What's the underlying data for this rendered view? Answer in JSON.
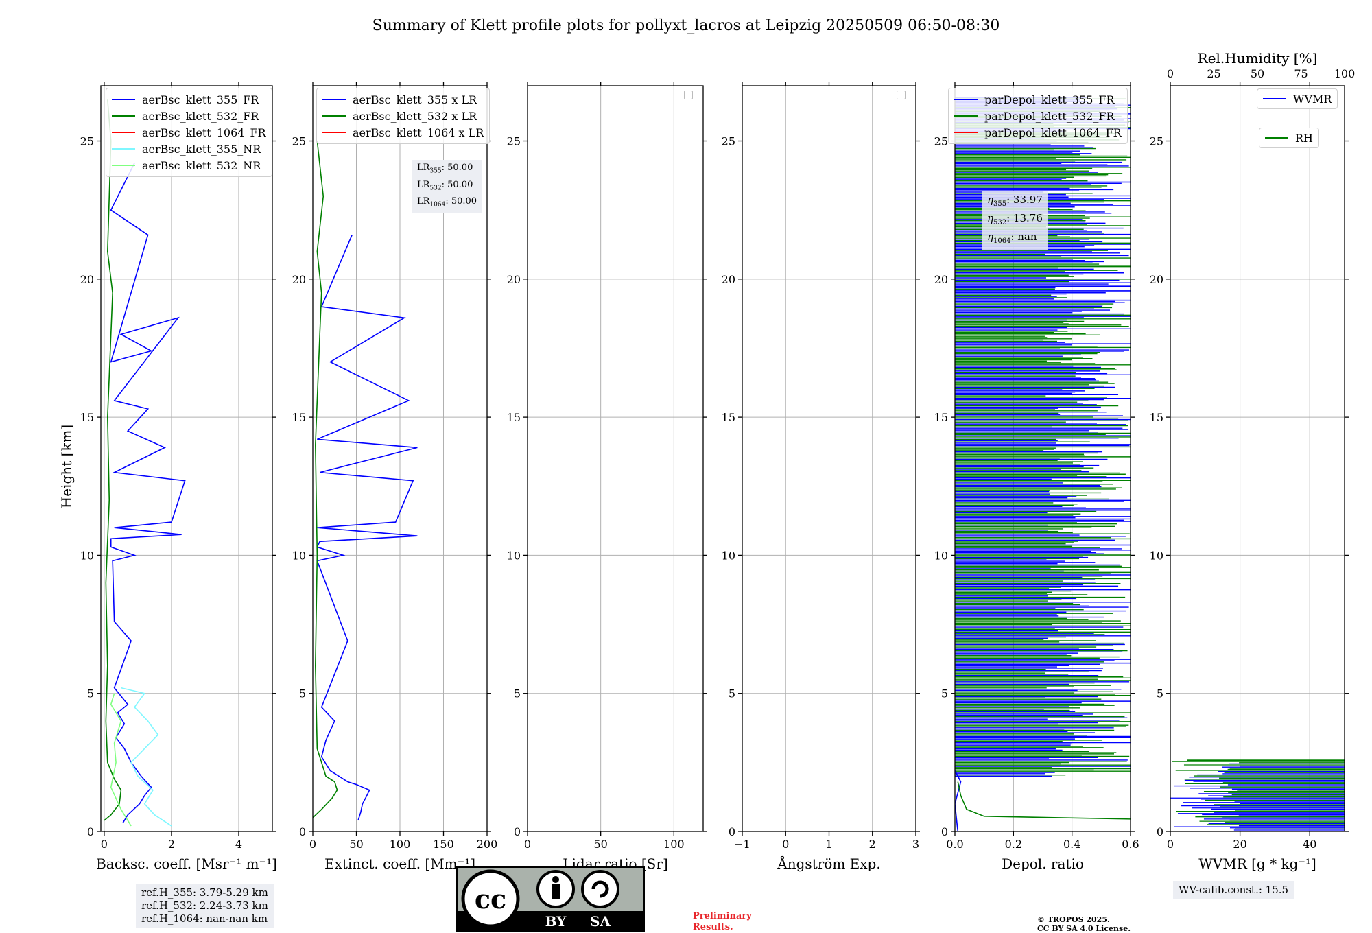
{
  "title": "Summary of Klett profile plots for pollyxt_lacros at Leipzig 20250509 06:50-08:30",
  "ylabel": "Height [km]",
  "yticks": [
    "0",
    "5",
    "10",
    "15",
    "20",
    "25"
  ],
  "colors": {
    "blue": "#0000ff",
    "green": "#008000",
    "red": "#ff0000",
    "cyan": "#7ff7ff",
    "lightgreen": "#80ff80"
  },
  "chart_data": [
    {
      "type": "line",
      "name": "backscatter",
      "xlabel": "Backsc. coeff. [Msr⁻¹ m⁻¹]",
      "xlim": [
        -0.1,
        5
      ],
      "ylim": [
        0,
        27
      ],
      "xticks": [
        "0",
        "2",
        "4"
      ],
      "legend_position": "top-right",
      "series": [
        {
          "name": "aerBsc_klett_355_FR",
          "color": "#0000ff",
          "x": [
            0.55,
            0.7,
            1.05,
            1.2,
            1.4,
            1.25,
            1.1,
            0.8,
            0.6,
            0.35,
            0.6,
            0.4,
            0.7,
            0.3,
            0.8,
            0.3,
            0.25,
            0.9,
            0.2,
            0.2,
            0.2,
            2.3,
            0.3,
            2.0,
            2.4,
            0.3,
            1.8,
            0.7,
            1.3,
            0.3,
            2.2,
            0.5,
            1.4,
            0.2,
            1.3,
            0.2,
            0.9
          ],
          "y": [
            0.3,
            0.6,
            1.0,
            1.3,
            1.6,
            1.8,
            2.0,
            2.5,
            3.0,
            3.4,
            3.9,
            4.3,
            4.6,
            5.2,
            6.9,
            7.6,
            9.8,
            10.0,
            10.3,
            10.5,
            10.6,
            10.75,
            11.0,
            11.2,
            12.7,
            13.0,
            13.9,
            14.5,
            15.3,
            15.6,
            18.6,
            18.0,
            17.4,
            17.0,
            21.6,
            22.5,
            24.2
          ]
        },
        {
          "name": "aerBsc_klett_532_FR",
          "color": "#008000",
          "x": [
            0.0,
            0.2,
            0.45,
            0.5,
            0.3,
            0.1,
            0.05,
            0.1,
            0.05,
            0.15,
            0.1,
            0.2,
            0.25,
            0.1,
            0.15,
            0.2,
            0.1
          ],
          "y": [
            0.4,
            0.6,
            1.0,
            1.5,
            1.9,
            2.5,
            4.0,
            6.0,
            9.0,
            12.0,
            15.0,
            18.0,
            19.5,
            21.0,
            23.0,
            25.0,
            26.5
          ]
        },
        {
          "name": "aerBsc_klett_1064_FR",
          "color": "#ff0000",
          "x": [],
          "y": []
        },
        {
          "name": "aerBsc_klett_355_NR",
          "color": "#7ff7ff",
          "x": [
            2.0,
            1.5,
            1.2,
            1.45,
            1.0,
            0.8,
            1.2,
            1.6,
            1.3,
            0.9,
            1.2,
            0.5
          ],
          "y": [
            0.2,
            0.6,
            1.0,
            1.5,
            2.0,
            2.5,
            3.0,
            3.5,
            4.0,
            4.5,
            5.0,
            5.2
          ]
        },
        {
          "name": "aerBsc_klett_532_NR",
          "color": "#80ff80",
          "x": [
            0.8,
            0.5,
            0.2,
            0.35,
            0.3,
            0.5,
            0.2,
            0.3
          ],
          "y": [
            0.2,
            0.8,
            1.6,
            2.5,
            3.2,
            4.0,
            4.6,
            5.0
          ]
        }
      ]
    },
    {
      "type": "line",
      "name": "extinction",
      "xlabel": "Extinct. coeff. [Mm⁻¹]",
      "xlim": [
        0,
        200
      ],
      "ylim": [
        0,
        27
      ],
      "xticks": [
        "0",
        "50",
        "100",
        "150",
        "200"
      ],
      "legend_position": "top-right",
      "series": [
        {
          "name": "aerBsc_klett_355 x LR",
          "color": "#0000ff",
          "x": [
            52,
            55,
            57,
            62,
            65,
            50,
            40,
            20,
            10,
            15,
            25,
            10,
            40,
            5,
            35,
            5,
            8,
            120,
            5,
            95,
            115,
            8,
            120,
            5,
            110,
            20,
            105,
            10,
            45
          ],
          "y": [
            0.4,
            0.7,
            1.0,
            1.3,
            1.5,
            1.7,
            1.8,
            2.2,
            2.7,
            3.3,
            4.0,
            4.5,
            6.9,
            9.8,
            10.0,
            10.3,
            10.5,
            10.7,
            11.0,
            11.2,
            12.7,
            13.0,
            13.9,
            14.2,
            15.6,
            17.0,
            18.6,
            19.0,
            21.6
          ]
        },
        {
          "name": "aerBsc_klett_532 x LR",
          "color": "#008000",
          "x": [
            0,
            10,
            22,
            28,
            25,
            15,
            5,
            3,
            5,
            3,
            8,
            10,
            5,
            12,
            5
          ],
          "y": [
            0.5,
            0.8,
            1.2,
            1.5,
            1.8,
            2.0,
            3.0,
            6.0,
            10.0,
            14.0,
            18.0,
            19.5,
            21.0,
            23.0,
            25.0
          ]
        },
        {
          "name": "aerBsc_klett_1064 x LR",
          "color": "#ff0000",
          "x": [],
          "y": []
        }
      ]
    },
    {
      "type": "line",
      "name": "lidar_ratio",
      "xlabel": "Lidar ratio [Sr]",
      "xlim": [
        0,
        120
      ],
      "ylim": [
        0,
        27
      ],
      "xticks": [
        "0",
        "50",
        "100"
      ],
      "series": []
    },
    {
      "type": "line",
      "name": "angstrom",
      "xlabel": "Ångström Exp.",
      "xlim": [
        -1,
        3
      ],
      "ylim": [
        0,
        27
      ],
      "xticks": [
        "−1",
        "0",
        "1",
        "2",
        "3"
      ],
      "series": []
    },
    {
      "type": "line",
      "name": "depolarization",
      "xlabel": "Depol. ratio",
      "xlim": [
        0,
        0.6
      ],
      "ylim": [
        0,
        27
      ],
      "xticks": [
        "0.0",
        "0.2",
        "0.4",
        "0.6"
      ],
      "legend_position": "top-right",
      "series": [
        {
          "name": "parDepol_klett_355_FR",
          "color": "#0000ff",
          "x": [
            0.01,
            0.005,
            0.0,
            0.02,
            0.0
          ],
          "y": [
            0.0,
            0.5,
            1.0,
            1.8,
            2.2
          ]
        },
        {
          "name": "parDepol_klett_532_FR",
          "color": "#008000",
          "x": [
            0.6,
            0.1,
            0.04,
            0.02,
            0.01
          ],
          "y": [
            0.45,
            0.55,
            0.8,
            1.3,
            1.8
          ]
        },
        {
          "name": "parDepol_klett_1064_FR",
          "color": "#ff0000",
          "x": [],
          "y": []
        }
      ]
    },
    {
      "type": "line",
      "name": "water_vapor",
      "xlabel": "WVMR [g * kg⁻¹]",
      "xlim": [
        0,
        50
      ],
      "ylim": [
        0,
        27
      ],
      "xticks": [
        "0",
        "20",
        "40"
      ],
      "x2label": "Rel.Humidity [%]",
      "x2lim": [
        0,
        100
      ],
      "x2ticks": [
        "0",
        "25",
        "50",
        "75",
        "100"
      ],
      "legend_position": "top-right",
      "series": [
        {
          "name": "WVMR",
          "color": "#0000ff",
          "x": [],
          "y": []
        },
        {
          "name": "RH",
          "color": "#008000",
          "x": [],
          "y": []
        }
      ]
    }
  ],
  "annotations": {
    "lr355_label": "LR",
    "lr355_sub": "355",
    "lr355_val": ": 50.00",
    "lr532_label": "LR",
    "lr532_sub": "532",
    "lr532_val": ": 50.00",
    "lr1064_label": "LR",
    "lr1064_sub": "1064",
    "lr1064_val": ": 50.00",
    "eta355_label": "η",
    "eta355_sub": "355",
    "eta355_val": ": 33.97",
    "eta532_label": "η",
    "eta532_sub": "532",
    "eta532_val": ": 13.76",
    "eta1064_label": "η",
    "eta1064_sub": "1064",
    "eta1064_val": ": nan",
    "refh_355": "ref.H_355: 3.79-5.29 km",
    "refh_532": "ref.H_532: 2.24-3.73 km",
    "refh_1064": "ref.H_1064: nan-nan km",
    "wv_calib": "WV-calib.const.: 15.5",
    "preliminary_1": "Preliminary",
    "preliminary_2": "Results.",
    "copyright_1": "© TROPOS 2025.",
    "copyright_2": "CC BY SA 4.0 License.",
    "cc_label": "cc",
    "by_label": "BY",
    "sa_label": "SA"
  }
}
